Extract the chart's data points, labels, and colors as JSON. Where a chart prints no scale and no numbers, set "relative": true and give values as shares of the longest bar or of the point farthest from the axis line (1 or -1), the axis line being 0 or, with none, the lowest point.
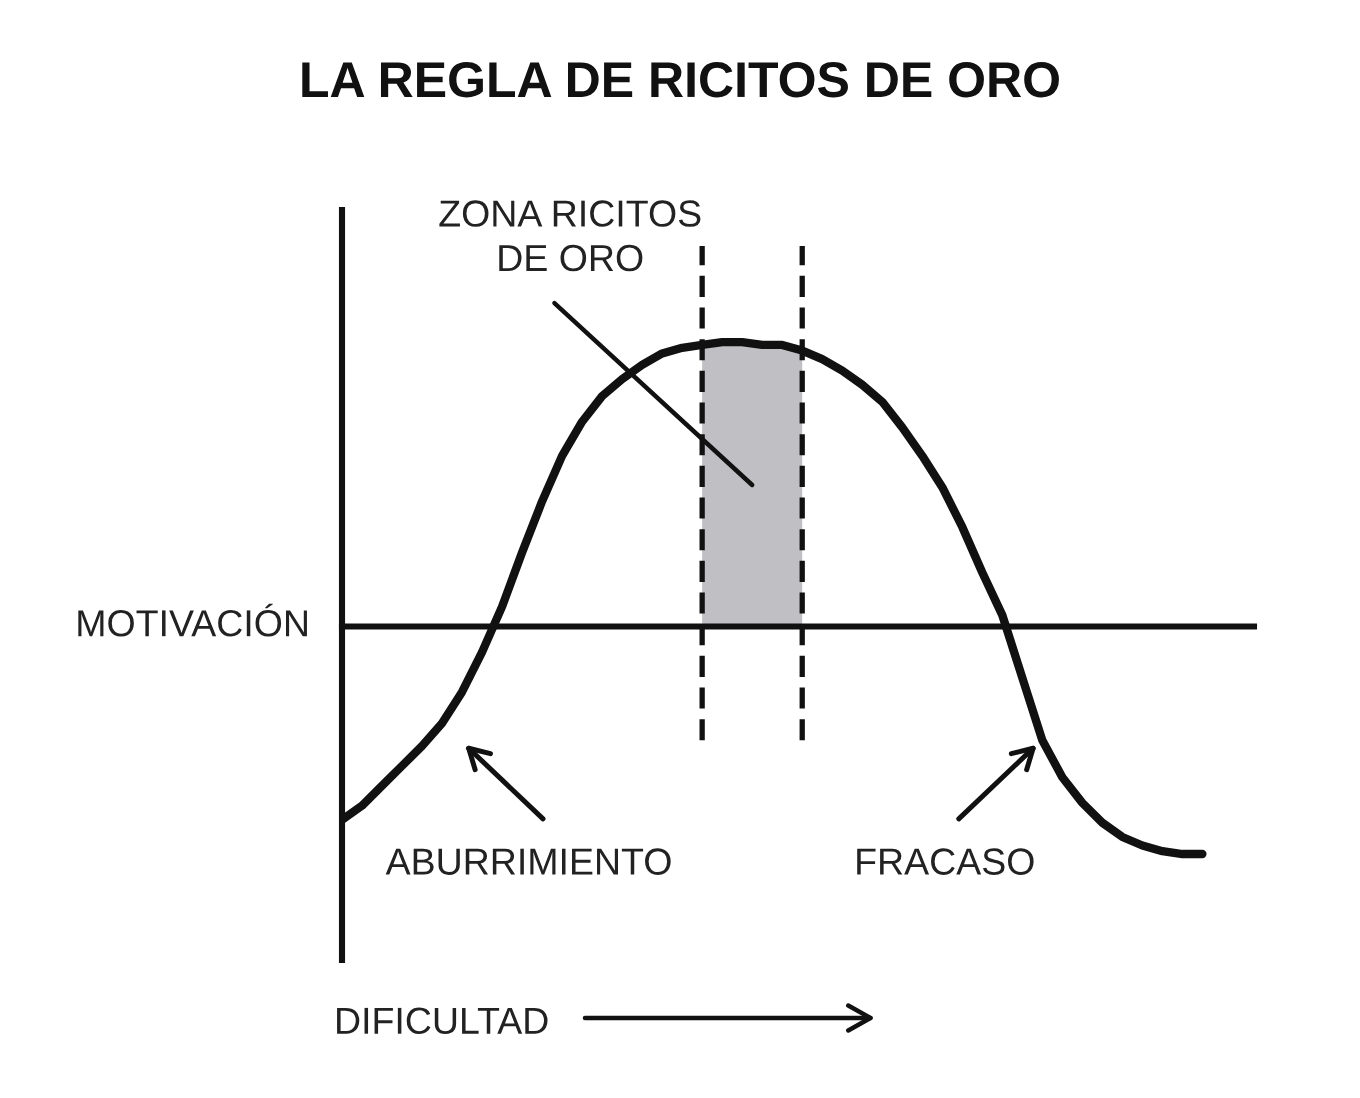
{
  "chart_data": {
    "type": "line",
    "title": "LA REGLA DE RICITOS DE ORO",
    "xlabel": "DIFICULTAD",
    "ylabel": "MOTIVACIÓN",
    "relative": true,
    "categories": [
      null,
      null,
      null,
      null,
      null,
      null,
      null,
      null,
      null,
      null,
      null,
      null,
      null,
      null,
      null,
      null,
      null,
      null,
      null,
      null,
      null,
      null,
      null,
      null,
      null,
      null,
      null,
      null,
      null,
      null,
      null,
      null,
      null,
      null,
      null,
      null,
      null,
      null,
      null,
      null,
      null,
      null,
      null,
      null
    ],
    "series": [
      {
        "color": "#111111",
        "values": [
          -0.68,
          -0.63,
          -0.56,
          -0.49,
          -0.42,
          -0.34,
          -0.23,
          -0.09,
          0.07,
          0.26,
          0.44,
          0.6,
          0.72,
          0.81,
          0.87,
          0.92,
          0.96,
          0.98,
          0.99,
          1.0,
          1.0,
          0.99,
          0.99,
          0.97,
          0.94,
          0.9,
          0.85,
          0.79,
          0.7,
          0.6,
          0.49,
          0.35,
          0.19,
          0.04,
          -0.18,
          -0.4,
          -0.53,
          -0.62,
          -0.69,
          -0.74,
          -0.77,
          -0.79,
          -0.8,
          -0.8
        ]
      }
    ],
    "annotations": [
      "ZONA RICITOS\nDE ORO",
      "ABURRIMIENTO",
      "FRACASO"
    ],
    "marker": "none",
    "line_style": "solid"
  }
}
